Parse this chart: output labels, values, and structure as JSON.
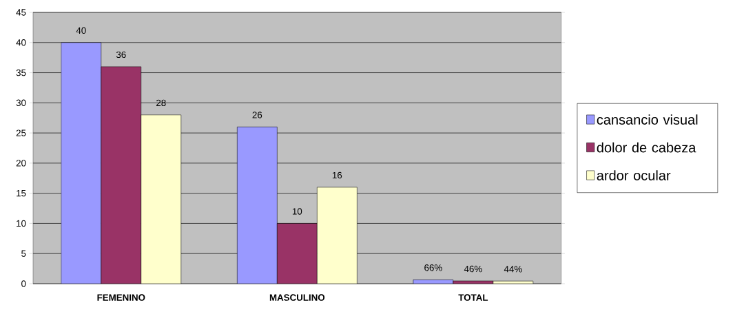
{
  "chart_data": {
    "type": "bar",
    "categories": [
      "FEMENINO",
      "MASCULINO",
      "TOTAL"
    ],
    "series": [
      {
        "name": "cansancio visual",
        "color": "#9999ff",
        "values": [
          40,
          26,
          0.66
        ],
        "value_labels": [
          "40",
          "26",
          "66%"
        ]
      },
      {
        "name": "dolor de cabeza",
        "color": "#993366",
        "values": [
          36,
          10,
          0.46
        ],
        "value_labels": [
          "36",
          "10",
          "46%"
        ]
      },
      {
        "name": "ardor ocular",
        "color": "#ffffcc",
        "values": [
          28,
          16,
          0.44
        ],
        "value_labels": [
          "28",
          "16",
          "44%"
        ]
      }
    ],
    "ylim": [
      0,
      45
    ],
    "yticks": [
      0,
      5,
      10,
      15,
      20,
      25,
      30,
      35,
      40,
      45
    ],
    "grid": "y",
    "legend": "right"
  }
}
